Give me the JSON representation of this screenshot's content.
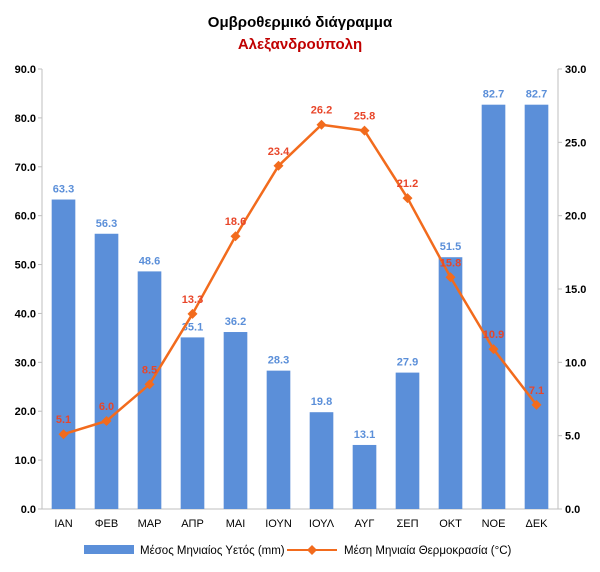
{
  "chart_data": {
    "type": "bar+line",
    "title": "Ομβροθερμικό διάγραμμα",
    "subtitle": "Αλεξανδρούπολη",
    "categories": [
      "ΙΑΝ",
      "ΦΕΒ",
      "ΜΑΡ",
      "ΑΠΡ",
      "ΜΑΙ",
      "ΙΟΥΝ",
      "ΙΟΥΛ",
      "ΑΥΓ",
      "ΣΕΠ",
      "ΟΚΤ",
      "ΝΟΕ",
      "ΔΕΚ"
    ],
    "series": [
      {
        "name": "Μέσος Μηνιαίος Υετός (mm)",
        "kind": "bar",
        "axis": "left",
        "color": "#5b8fd9",
        "values": [
          63.3,
          56.3,
          48.6,
          35.1,
          36.2,
          28.3,
          19.8,
          13.1,
          27.9,
          51.5,
          82.7,
          82.7
        ],
        "labels": [
          "63.3",
          "56.3",
          "48.6",
          "35.1",
          "36.2",
          "28.3",
          "19.8",
          "13.1",
          "27.9",
          "51.5",
          "82.7",
          "82.7"
        ]
      },
      {
        "name": "Μέση Μηνιαία Θερμοκρασία (°C)",
        "kind": "line",
        "axis": "right",
        "color": "#f26b1d",
        "values": [
          5.1,
          6.0,
          8.5,
          13.3,
          18.6,
          23.4,
          26.2,
          25.8,
          21.2,
          15.8,
          10.9,
          7.1
        ],
        "labels": [
          "5.1",
          "6.0",
          "8.5",
          "13.3",
          "18.6",
          "23.4",
          "26.2",
          "25.8",
          "21.2",
          "15.8",
          "10.9",
          "7.1"
        ]
      }
    ],
    "y_left": {
      "min": 0,
      "max": 90,
      "step": 10,
      "tick_labels": [
        "0.0",
        "10.0",
        "20.0",
        "30.0",
        "40.0",
        "50.0",
        "60.0",
        "70.0",
        "80.0",
        "90.0"
      ]
    },
    "y_right": {
      "min": 0,
      "max": 30,
      "step": 5,
      "tick_labels": [
        "0.0",
        "5.0",
        "10.0",
        "15.0",
        "20.0",
        "25.0",
        "30.0"
      ]
    },
    "grid": false,
    "legend": "bottom",
    "colors": {
      "subtitle": "#c00000",
      "bar_label": "#5b8fd9",
      "line_label": "#e8462a"
    }
  }
}
